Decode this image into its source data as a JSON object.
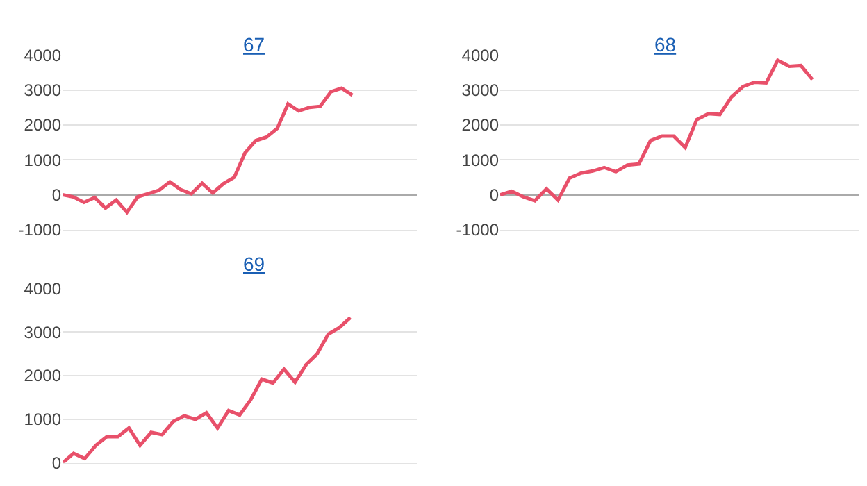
{
  "chart_data": [
    {
      "type": "line",
      "title": "67",
      "color": "#e8506a",
      "grid": "y",
      "tick_labels": "y",
      "ylim": [
        -1000,
        4000
      ],
      "yticks": [
        -1000,
        0,
        1000,
        2000,
        3000,
        4000
      ],
      "categories": [
        null,
        null,
        null,
        null,
        null,
        null,
        null,
        null,
        null,
        null,
        null,
        null,
        null,
        null,
        null,
        null,
        null,
        null,
        null,
        null,
        null,
        null,
        null,
        null,
        null,
        null,
        null,
        null,
        null,
        null,
        null,
        null,
        null,
        null
      ],
      "values": [
        0,
        -60,
        -220,
        -80,
        -380,
        -150,
        -500,
        -60,
        30,
        130,
        370,
        150,
        30,
        330,
        50,
        320,
        500,
        1200,
        1550,
        1650,
        1900,
        2600,
        2400,
        2500,
        2530,
        2950,
        3050,
        2850,
        null,
        null,
        null,
        null,
        null,
        null
      ]
    },
    {
      "type": "line",
      "title": "68",
      "color": "#e8506a",
      "grid": "y",
      "tick_labels": "y",
      "ylim": [
        -1000,
        4000
      ],
      "yticks": [
        -1000,
        0,
        1000,
        2000,
        3000,
        4000
      ],
      "categories": [
        null,
        null,
        null,
        null,
        null,
        null,
        null,
        null,
        null,
        null,
        null,
        null,
        null,
        null,
        null,
        null,
        null,
        null,
        null,
        null,
        null,
        null,
        null,
        null,
        null,
        null,
        null,
        null,
        null,
        null,
        null,
        null
      ],
      "values": [
        0,
        100,
        -60,
        -170,
        170,
        -150,
        480,
        620,
        680,
        780,
        660,
        850,
        880,
        1550,
        1680,
        1680,
        1350,
        2150,
        2320,
        2300,
        2800,
        3100,
        3220,
        3200,
        3850,
        3680,
        3700,
        3300,
        null,
        null,
        null,
        null
      ]
    },
    {
      "type": "line",
      "title": "69",
      "color": "#e8506a",
      "grid": "y",
      "tick_labels": "y",
      "ylim": [
        0,
        4000
      ],
      "yticks": [
        0,
        1000,
        2000,
        3000,
        4000
      ],
      "categories": [
        null,
        null,
        null,
        null,
        null,
        null,
        null,
        null,
        null,
        null,
        null,
        null,
        null,
        null,
        null,
        null,
        null,
        null,
        null,
        null,
        null,
        null,
        null,
        null,
        null,
        null,
        null,
        null,
        null,
        null,
        null,
        null,
        null
      ],
      "values": [
        0,
        220,
        100,
        400,
        600,
        600,
        800,
        400,
        700,
        650,
        950,
        1080,
        1000,
        1150,
        800,
        1200,
        1100,
        1450,
        1920,
        1830,
        2150,
        1850,
        2250,
        2500,
        2950,
        3100,
        3330,
        null,
        null,
        null,
        null,
        null,
        null
      ]
    }
  ]
}
